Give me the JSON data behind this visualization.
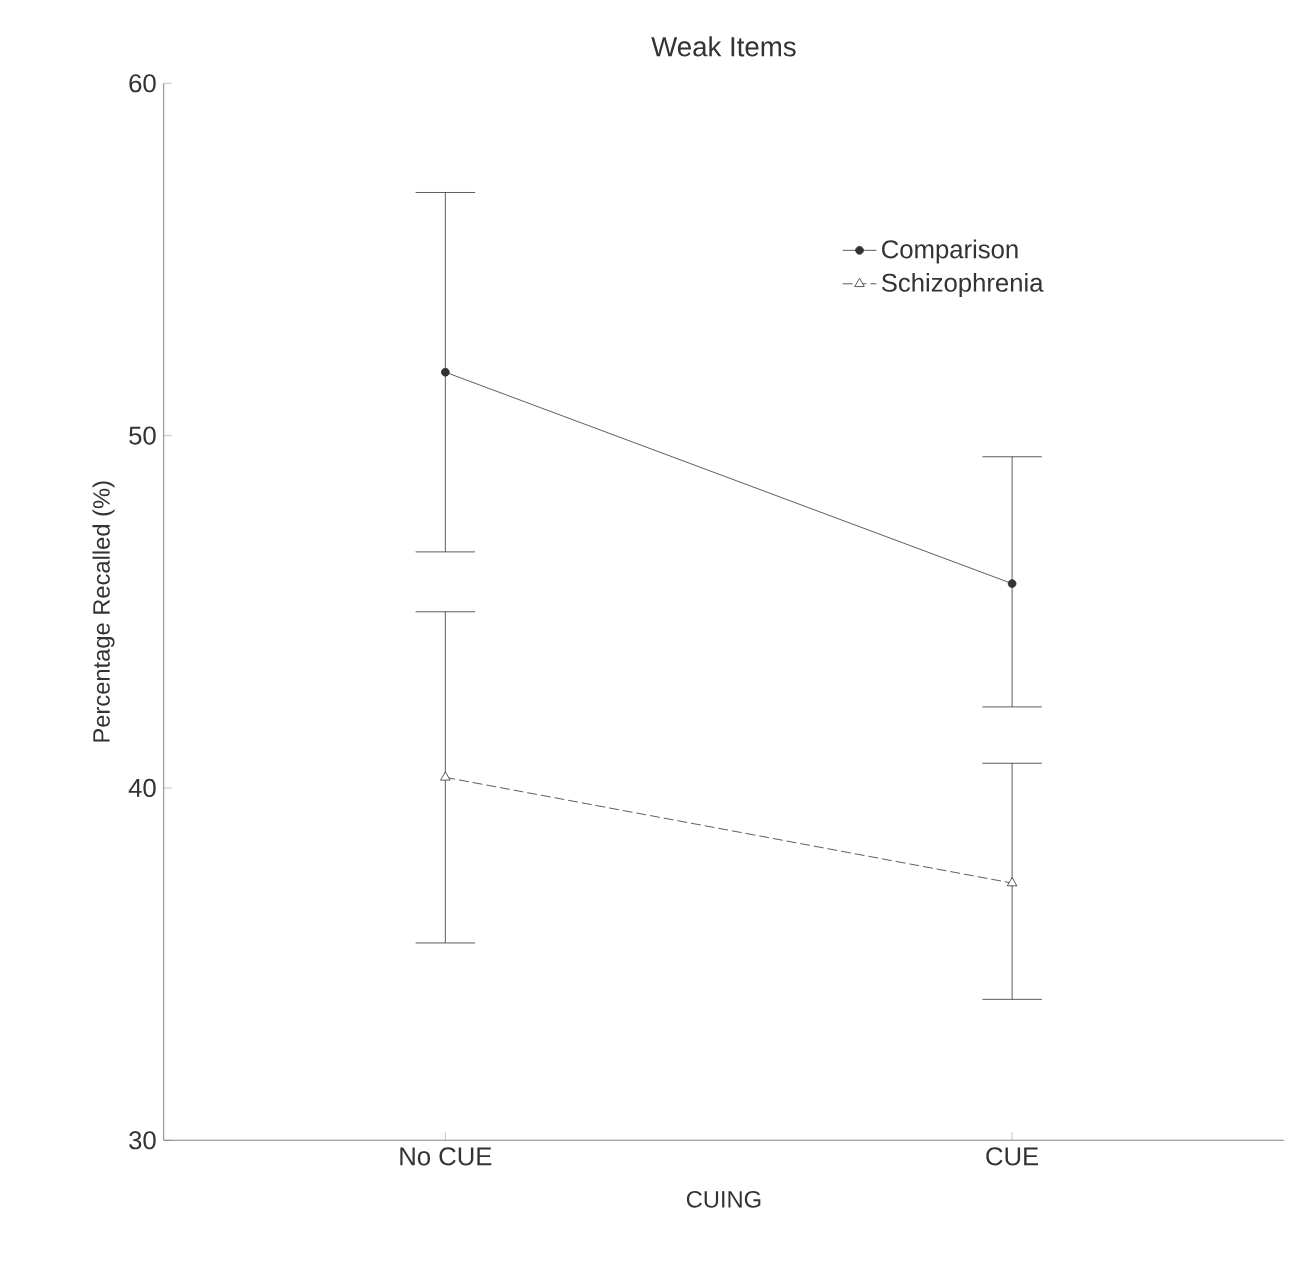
{
  "chart_data": {
    "type": "line",
    "title": "Weak Items",
    "xlabel": "CUING",
    "ylabel": "Percentage Recalled (%)",
    "categories": [
      "No CUE",
      "CUE"
    ],
    "series": [
      {
        "name": "Comparison",
        "color": "#333333",
        "marker": "circle",
        "line_style": "solid",
        "values": [
          51.8,
          45.8
        ],
        "errors": [
          [
            46.7,
            56.9
          ],
          [
            42.3,
            49.4
          ]
        ]
      },
      {
        "name": "Schizophrenia",
        "color": "#333333",
        "marker": "triangle",
        "line_style": "dashed",
        "values": [
          40.3,
          37.3
        ],
        "errors": [
          [
            35.6,
            45.0
          ],
          [
            34.0,
            40.7
          ]
        ]
      }
    ],
    "ylim": [
      30,
      60
    ],
    "yticks": [
      30,
      40,
      50,
      60
    ],
    "grid": false,
    "legend": "top right"
  }
}
